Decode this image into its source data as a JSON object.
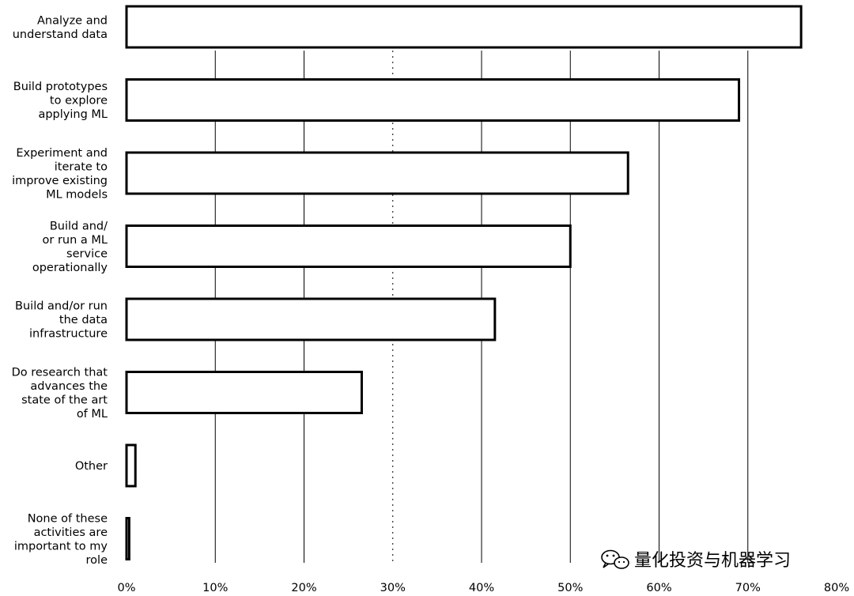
{
  "chart_data": {
    "type": "bar",
    "orientation": "horizontal",
    "title": "",
    "xlabel": "",
    "ylabel": "",
    "xlim": [
      0,
      80
    ],
    "x_ticks": [
      "0%",
      "10%",
      "20%",
      "30%",
      "40%",
      "50%",
      "60%",
      "70%",
      "80%"
    ],
    "grid": "vertical",
    "categories": [
      [
        "Analyze and",
        "understand data"
      ],
      [
        "Build prototypes",
        "to explore",
        "applying ML"
      ],
      [
        "Experiment and",
        "iterate to",
        "improve existing",
        "ML models"
      ],
      [
        "Build and/",
        "or run a ML",
        "service",
        "operationally"
      ],
      [
        "Build and/or run",
        "the data",
        "infrastructure"
      ],
      [
        "Do research that",
        "advances the",
        "state of the art",
        "of ML"
      ],
      [
        "Other"
      ],
      [
        "None of these",
        "activities are",
        "important to my",
        "role"
      ]
    ],
    "values": [
      76,
      69,
      56.5,
      50,
      41.5,
      26.5,
      1,
      0.3
    ],
    "colors": {
      "bar_fill": "#ffffff",
      "bar_stroke": "#000000",
      "grid": "#000000"
    }
  },
  "watermark": {
    "text": "量化投资与机器学习",
    "icon": "wechat-icon"
  }
}
